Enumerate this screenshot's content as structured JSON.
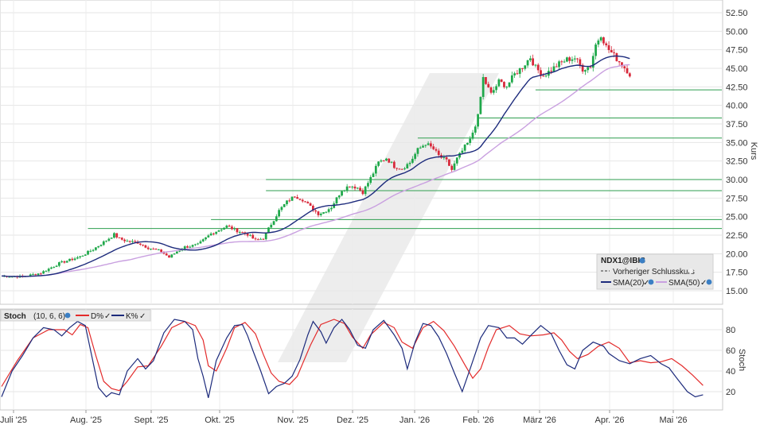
{
  "chart_data": [
    {
      "type": "candlestick",
      "symbol": "NDX1@IBIS",
      "ylabel": "Kurs",
      "ylim": [
        14.5,
        53.5
      ],
      "y_ticks": [
        "15.00",
        "17.50",
        "20.00",
        "22.50",
        "25.00",
        "27.50",
        "30.00",
        "32.50",
        "35.00",
        "37.50",
        "40.00",
        "42.50",
        "45.00",
        "47.50",
        "50.00",
        "52.50"
      ],
      "x_ticks": [
        "Juli '25",
        "Aug. '25",
        "Sept. '25",
        "Okt. '25",
        "Nov. '25",
        "Dez. '25",
        "Jan. '26",
        "Feb. '26",
        "März '26",
        "Apr. '26",
        "Mai '26"
      ],
      "legend": {
        "symbol": "NDX1@IBIS",
        "previous_close": "Vorheriger Schlusskurs",
        "sma20": "SMA(20)",
        "sma50": "SMA(50)"
      },
      "close_path": [
        [
          0,
          17.0
        ],
        [
          8,
          16.9
        ],
        [
          15,
          17.4
        ],
        [
          22,
          18.7
        ],
        [
          30,
          19.6
        ],
        [
          35,
          20.6
        ],
        [
          40,
          21.8
        ],
        [
          43,
          22.6
        ],
        [
          45,
          22.0
        ],
        [
          48,
          21.7
        ],
        [
          52,
          21.5
        ],
        [
          56,
          20.8
        ],
        [
          61,
          20.3
        ],
        [
          64,
          19.5
        ],
        [
          67,
          20.3
        ],
        [
          70,
          20.9
        ],
        [
          75,
          21.2
        ],
        [
          80,
          22.7
        ],
        [
          86,
          23.7
        ],
        [
          90,
          23.1
        ],
        [
          94,
          22.6
        ],
        [
          97,
          21.8
        ],
        [
          100,
          22.1
        ],
        [
          103,
          24.0
        ],
        [
          106,
          25.8
        ],
        [
          109,
          27.0
        ],
        [
          112,
          27.8
        ],
        [
          115,
          27.3
        ],
        [
          118,
          26.3
        ],
        [
          121,
          25.4
        ],
        [
          123,
          25.6
        ],
        [
          126,
          26.3
        ],
        [
          130,
          28.6
        ],
        [
          133,
          29.2
        ],
        [
          136,
          28.9
        ],
        [
          138,
          28.3
        ],
        [
          141,
          30.2
        ],
        [
          144,
          32.3
        ],
        [
          147,
          32.9
        ],
        [
          150,
          31.8
        ],
        [
          153,
          31.5
        ],
        [
          156,
          32.3
        ],
        [
          159,
          34.0
        ],
        [
          162,
          34.9
        ],
        [
          165,
          34.1
        ],
        [
          167,
          33.2
        ],
        [
          170,
          32.5
        ],
        [
          172,
          31.3
        ],
        [
          174,
          32.8
        ],
        [
          177,
          34.4
        ],
        [
          179,
          35.3
        ],
        [
          182,
          38.5
        ],
        [
          184,
          43.7
        ],
        [
          187,
          41.5
        ],
        [
          190,
          43.2
        ],
        [
          193,
          42.6
        ],
        [
          196,
          44.2
        ],
        [
          199,
          45.2
        ],
        [
          202,
          46.5
        ],
        [
          204,
          45.1
        ],
        [
          207,
          44.0
        ],
        [
          210,
          44.8
        ],
        [
          213,
          45.6
        ],
        [
          216,
          46.2
        ],
        [
          219,
          46.4
        ],
        [
          222,
          44.9
        ],
        [
          225,
          45.3
        ],
        [
          227,
          48.2
        ],
        [
          229,
          49.6
        ],
        [
          231,
          47.9
        ],
        [
          233,
          47.1
        ],
        [
          235,
          46.3
        ],
        [
          237,
          45.5
        ],
        [
          239,
          44.7
        ],
        [
          240,
          44.2
        ]
      ],
      "horizontal_levels": [
        {
          "y": 42.1,
          "x_start": 204
        },
        {
          "y": 38.3,
          "x_start": 182
        },
        {
          "y": 35.6,
          "x_start": 159
        },
        {
          "y": 30.0,
          "x_start": 101
        },
        {
          "y": 28.5,
          "x_start": 101
        },
        {
          "y": 24.6,
          "x_start": 80
        },
        {
          "y": 23.4,
          "x_start": 33
        }
      ],
      "colors": {
        "up": "#1fa84a",
        "down": "#d8283a",
        "sma20": "#1d2b7c",
        "sma50": "#c9a0e0",
        "level": "#2e9e4f"
      }
    },
    {
      "type": "line",
      "indicator": "Stoch",
      "params": "(10, 6, 6)",
      "ylabel": "Stoch",
      "ylim": [
        8,
        97
      ],
      "y_ticks": [
        "20",
        "40",
        "60",
        "80"
      ],
      "series": [
        {
          "name": "D%",
          "color": "#e32b2b",
          "path": [
            [
              0,
              25
            ],
            [
              6,
              50
            ],
            [
              12,
              72
            ],
            [
              18,
              80
            ],
            [
              24,
              80
            ],
            [
              27,
              75
            ],
            [
              30,
              85
            ],
            [
              33,
              82
            ],
            [
              36,
              55
            ],
            [
              39,
              30
            ],
            [
              42,
              23
            ],
            [
              45,
              21
            ],
            [
              48,
              30
            ],
            [
              52,
              44
            ],
            [
              56,
              45
            ],
            [
              61,
              64
            ],
            [
              65,
              82
            ],
            [
              70,
              88
            ],
            [
              74,
              84
            ],
            [
              77,
              70
            ],
            [
              79,
              45
            ],
            [
              82,
              40
            ],
            [
              86,
              62
            ],
            [
              89,
              82
            ],
            [
              93,
              87
            ],
            [
              97,
              76
            ],
            [
              100,
              56
            ],
            [
              103,
              38
            ],
            [
              106,
              30
            ],
            [
              110,
              27
            ],
            [
              113,
              35
            ],
            [
              118,
              65
            ],
            [
              122,
              85
            ],
            [
              127,
              90
            ],
            [
              131,
              86
            ],
            [
              134,
              73
            ],
            [
              138,
              62
            ],
            [
              141,
              75
            ],
            [
              146,
              87
            ],
            [
              150,
              82
            ],
            [
              153,
              68
            ],
            [
              157,
              62
            ],
            [
              161,
              82
            ],
            [
              165,
              88
            ],
            [
              169,
              79
            ],
            [
              173,
              64
            ],
            [
              177,
              46
            ],
            [
              180,
              33
            ],
            [
              183,
              42
            ],
            [
              186,
              63
            ],
            [
              189,
              80
            ],
            [
              194,
              84
            ],
            [
              198,
              76
            ],
            [
              202,
              74
            ],
            [
              207,
              75
            ],
            [
              211,
              77
            ],
            [
              214,
              70
            ],
            [
              217,
              59
            ],
            [
              220,
              52
            ],
            [
              224,
              56
            ],
            [
              228,
              64
            ],
            [
              232,
              68
            ],
            [
              236,
              62
            ],
            [
              240,
              48
            ],
            [
              244,
              50
            ],
            [
              248,
              48
            ],
            [
              252,
              49
            ],
            [
              256,
              52
            ],
            [
              260,
              45
            ],
            [
              264,
              36
            ],
            [
              268,
              26
            ]
          ]
        },
        {
          "name": "K%",
          "color": "#1d2b7c",
          "path": [
            [
              0,
              15
            ],
            [
              4,
              40
            ],
            [
              8,
              55
            ],
            [
              12,
              72
            ],
            [
              16,
              82
            ],
            [
              20,
              80
            ],
            [
              23,
              74
            ],
            [
              26,
              82
            ],
            [
              29,
              88
            ],
            [
              32,
              84
            ],
            [
              34,
              60
            ],
            [
              37,
              24
            ],
            [
              40,
              15
            ],
            [
              42,
              19
            ],
            [
              45,
              17
            ],
            [
              48,
              40
            ],
            [
              52,
              52
            ],
            [
              55,
              42
            ],
            [
              58,
              50
            ],
            [
              62,
              77
            ],
            [
              66,
              90
            ],
            [
              70,
              88
            ],
            [
              73,
              80
            ],
            [
              75,
              52
            ],
            [
              77,
              35
            ],
            [
              79,
              14
            ],
            [
              82,
              50
            ],
            [
              86,
              72
            ],
            [
              89,
              84
            ],
            [
              92,
              85
            ],
            [
              94,
              74
            ],
            [
              96,
              60
            ],
            [
              99,
              40
            ],
            [
              102,
              18
            ],
            [
              105,
              25
            ],
            [
              108,
              28
            ],
            [
              111,
              35
            ],
            [
              114,
              51
            ],
            [
              117,
              75
            ],
            [
              119,
              88
            ],
            [
              122,
              78
            ],
            [
              124,
              67
            ],
            [
              127,
              82
            ],
            [
              130,
              90
            ],
            [
              133,
              80
            ],
            [
              136,
              65
            ],
            [
              139,
              62
            ],
            [
              142,
              80
            ],
            [
              146,
              89
            ],
            [
              150,
              75
            ],
            [
              153,
              62
            ],
            [
              155,
              42
            ],
            [
              158,
              68
            ],
            [
              161,
              86
            ],
            [
              164,
              84
            ],
            [
              167,
              73
            ],
            [
              170,
              57
            ],
            [
              173,
              38
            ],
            [
              176,
              20
            ],
            [
              179,
              42
            ],
            [
              183,
              72
            ],
            [
              186,
              84
            ],
            [
              190,
              82
            ],
            [
              193,
              72
            ],
            [
              196,
              72
            ],
            [
              199,
              66
            ],
            [
              202,
              74
            ],
            [
              206,
              84
            ],
            [
              210,
              76
            ],
            [
              213,
              60
            ],
            [
              216,
              46
            ],
            [
              219,
              42
            ],
            [
              222,
              60
            ],
            [
              226,
              68
            ],
            [
              230,
              64
            ],
            [
              232,
              57
            ],
            [
              236,
              50
            ],
            [
              240,
              47
            ],
            [
              244,
              52
            ],
            [
              248,
              55
            ],
            [
              252,
              47
            ],
            [
              255,
              43
            ],
            [
              258,
              33
            ],
            [
              262,
              20
            ],
            [
              265,
              15
            ],
            [
              268,
              17
            ]
          ]
        }
      ]
    }
  ]
}
